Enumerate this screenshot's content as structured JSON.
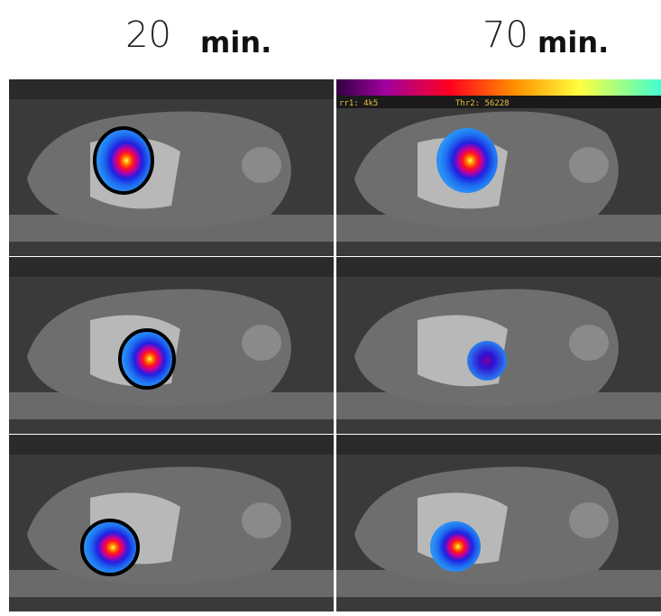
{
  "header": {
    "left": {
      "number": "20",
      "unit": "min."
    },
    "right": {
      "number": "70",
      "unit": "min."
    }
  },
  "overlay": {
    "threshold1": "rr1: 4k5",
    "threshold2": "Thr2: 56228"
  }
}
